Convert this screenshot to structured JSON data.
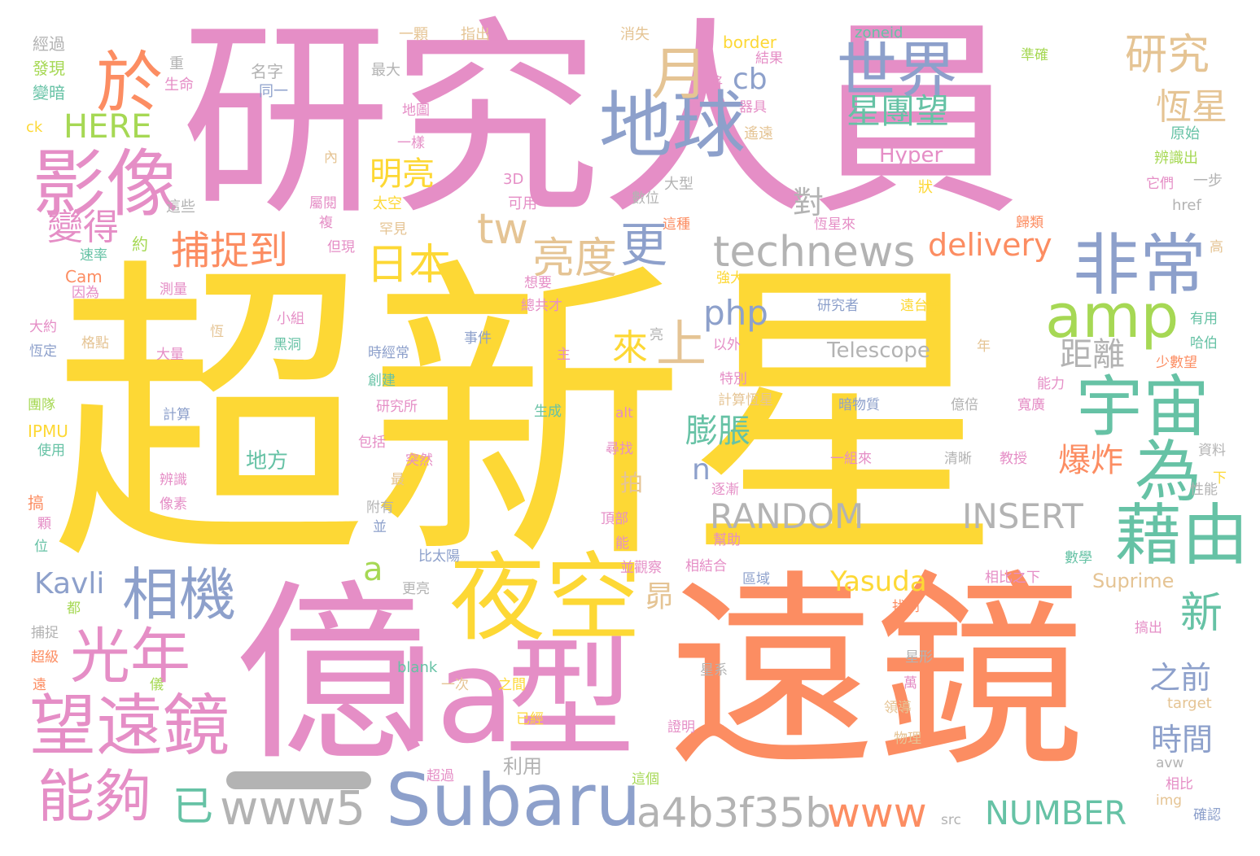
{
  "words": [
    {
      "text": "超新星",
      "color": "yellow"
    },
    {
      "text": "研究人員",
      "color": "pink"
    },
    {
      "text": "遠鏡",
      "color": "orange"
    },
    {
      "text": "億",
      "color": "pink"
    },
    {
      "text": "Ia",
      "color": "pink"
    },
    {
      "text": "型",
      "color": "pink"
    },
    {
      "text": "夜空",
      "color": "yellow"
    },
    {
      "text": "地球",
      "color": "blue"
    },
    {
      "text": "影像",
      "color": "pink"
    },
    {
      "text": "望遠鏡",
      "color": "pink"
    },
    {
      "text": "Subaru",
      "color": "blue"
    },
    {
      "text": "宇宙",
      "color": "green"
    },
    {
      "text": "藉由",
      "color": "green"
    },
    {
      "text": "為",
      "color": "green"
    },
    {
      "text": "非常",
      "color": "blue"
    },
    {
      "text": "amp",
      "color": "lime"
    },
    {
      "text": "世界",
      "color": "blue"
    },
    {
      "text": "月",
      "color": "tan"
    },
    {
      "text": "於",
      "color": "orange"
    },
    {
      "text": "光年",
      "color": "pink"
    },
    {
      "text": "相機",
      "color": "blue"
    },
    {
      "text": "能夠",
      "color": "pink"
    },
    {
      "text": "www5",
      "color": "gray"
    },
    {
      "text": "a4b3f35b",
      "color": "gray"
    },
    {
      "text": "www",
      "color": "orange"
    },
    {
      "text": "NUMBER",
      "color": "green"
    },
    {
      "text": "technews",
      "color": "gray"
    },
    {
      "text": "RANDOM",
      "color": "gray"
    },
    {
      "text": "INSERT",
      "color": "gray"
    },
    {
      "text": "delivery",
      "color": "orange"
    },
    {
      "text": "研究",
      "color": "tan"
    },
    {
      "text": "恆星",
      "color": "tan"
    },
    {
      "text": "星團望",
      "color": "green"
    },
    {
      "text": "捕捉到",
      "color": "orange"
    },
    {
      "text": "日本",
      "color": "yellow"
    },
    {
      "text": "亮度",
      "color": "tan"
    },
    {
      "text": "更",
      "color": "blue"
    },
    {
      "text": "上",
      "color": "tan"
    },
    {
      "text": "來",
      "color": "yellow"
    },
    {
      "text": "php",
      "color": "blue"
    },
    {
      "text": "cb",
      "color": "blue"
    },
    {
      "text": "tw",
      "color": "tan"
    },
    {
      "text": "明亮",
      "color": "yellow"
    },
    {
      "text": "變得",
      "color": "pink"
    },
    {
      "text": "HERE",
      "color": "lime"
    },
    {
      "text": "距離",
      "color": "gray"
    },
    {
      "text": "膨脹",
      "color": "green"
    },
    {
      "text": "爆炸",
      "color": "orange"
    },
    {
      "text": "新",
      "color": "green"
    },
    {
      "text": "之前",
      "color": "blue"
    },
    {
      "text": "時間",
      "color": "blue"
    },
    {
      "text": "Kavli",
      "color": "blue"
    },
    {
      "text": "Yasuda",
      "color": "yellow"
    },
    {
      "text": "已",
      "color": "green"
    },
    {
      "text": "a",
      "color": "lime"
    },
    {
      "text": "n",
      "color": "blue"
    },
    {
      "text": "昴",
      "color": "tan"
    },
    {
      "text": "拍",
      "color": "tan"
    },
    {
      "text": "對",
      "color": "gray"
    },
    {
      "text": "地方",
      "color": "green"
    },
    {
      "text": "Telescope",
      "color": "gray"
    },
    {
      "text": "Hyper",
      "color": "pink"
    },
    {
      "text": "Suprime",
      "color": "tan"
    },
    {
      "text": "利用",
      "color": "gray"
    },
    {
      "text": "經過",
      "color": "gray"
    },
    {
      "text": "發現",
      "color": "lime"
    },
    {
      "text": "變暗",
      "color": "green"
    },
    {
      "text": "ck",
      "color": "yellow"
    },
    {
      "text": "IPMU",
      "color": "yellow"
    },
    {
      "text": "Cam",
      "color": "orange"
    },
    {
      "text": "一顆",
      "color": "tan"
    },
    {
      "text": "指出",
      "color": "tan"
    },
    {
      "text": "消失",
      "color": "tan"
    },
    {
      "text": "border",
      "color": "yellow"
    },
    {
      "text": "zoneid",
      "color": "green"
    },
    {
      "text": "準確",
      "color": "lime"
    },
    {
      "text": "名字",
      "color": "gray"
    },
    {
      "text": "最大",
      "color": "gray"
    },
    {
      "text": "生命",
      "color": "pink"
    },
    {
      "text": "同一",
      "color": "blue"
    },
    {
      "text": "將",
      "color": "pink"
    },
    {
      "text": "結果",
      "color": "pink"
    },
    {
      "text": "器具",
      "color": "pink"
    },
    {
      "text": "遙遠",
      "color": "tan"
    },
    {
      "text": "原始",
      "color": "green"
    },
    {
      "text": "辨識出",
      "color": "lime"
    },
    {
      "text": "一步",
      "color": "gray"
    },
    {
      "text": "它們",
      "color": "pink"
    },
    {
      "text": "href",
      "color": "gray"
    },
    {
      "text": "3D",
      "color": "pink"
    },
    {
      "text": "大型",
      "color": "gray"
    },
    {
      "text": "數位",
      "color": "gray"
    },
    {
      "text": "可用",
      "color": "pink"
    },
    {
      "text": "太空",
      "color": "yellow"
    },
    {
      "text": "屬閱",
      "color": "pink"
    },
    {
      "text": "這些",
      "color": "gray"
    },
    {
      "text": "狀",
      "color": "yellow"
    },
    {
      "text": "歸類",
      "color": "orange"
    },
    {
      "text": "罕見",
      "color": "tan"
    },
    {
      "text": "複",
      "color": "pink"
    },
    {
      "text": "約",
      "color": "lime"
    },
    {
      "text": "速率",
      "color": "green"
    },
    {
      "text": "但現",
      "color": "pink"
    },
    {
      "text": "因為",
      "color": "pink"
    },
    {
      "text": "測量",
      "color": "pink"
    },
    {
      "text": "想要",
      "color": "pink"
    },
    {
      "text": "強大",
      "color": "yellow"
    },
    {
      "text": "研究者",
      "color": "blue"
    },
    {
      "text": "遠台望",
      "color": "yellow"
    },
    {
      "text": "有用",
      "color": "green"
    },
    {
      "text": "哈伯",
      "color": "green"
    },
    {
      "text": "小組",
      "color": "pink"
    },
    {
      "text": "事件",
      "color": "blue"
    },
    {
      "text": "黑洞",
      "color": "green"
    },
    {
      "text": "以外",
      "color": "pink"
    },
    {
      "text": "年",
      "color": "tan"
    },
    {
      "text": "少數望",
      "color": "orange"
    },
    {
      "text": "大約",
      "color": "pink"
    },
    {
      "text": "恆定",
      "color": "blue"
    },
    {
      "text": "格點",
      "color": "tan"
    },
    {
      "text": "大量",
      "color": "pink"
    },
    {
      "text": "時經常",
      "color": "blue"
    },
    {
      "text": "主",
      "color": "pink"
    },
    {
      "text": "特別",
      "color": "pink"
    },
    {
      "text": "計算恆星",
      "color": "tan"
    },
    {
      "text": "能力",
      "color": "pink"
    },
    {
      "text": "團隊",
      "color": "lime"
    },
    {
      "text": "創建",
      "color": "green"
    },
    {
      "text": "研究所",
      "color": "pink"
    },
    {
      "text": "生成",
      "color": "green"
    },
    {
      "text": "alt",
      "color": "pink"
    },
    {
      "text": "暗物質",
      "color": "blue"
    },
    {
      "text": "億倍",
      "color": "gray"
    },
    {
      "text": "寬廣",
      "color": "pink"
    },
    {
      "text": "計算",
      "color": "blue"
    },
    {
      "text": "使用",
      "color": "green"
    },
    {
      "text": "包括",
      "color": "pink"
    },
    {
      "text": "突然",
      "color": "pink"
    },
    {
      "text": "尋找",
      "color": "pink"
    },
    {
      "text": "一組來",
      "color": "pink"
    },
    {
      "text": "清晰",
      "color": "gray"
    },
    {
      "text": "教授",
      "color": "pink"
    },
    {
      "text": "資料",
      "color": "gray"
    },
    {
      "text": "辨識",
      "color": "pink"
    },
    {
      "text": "最",
      "color": "tan"
    },
    {
      "text": "逐漸",
      "color": "pink"
    },
    {
      "text": "下",
      "color": "yellow"
    },
    {
      "text": "性能",
      "color": "gray"
    },
    {
      "text": "搞",
      "color": "orange"
    },
    {
      "text": "顆",
      "color": "pink"
    },
    {
      "text": "像素",
      "color": "pink"
    },
    {
      "text": "附有",
      "color": "gray"
    },
    {
      "text": "頂部",
      "color": "pink"
    },
    {
      "text": "並",
      "color": "blue"
    },
    {
      "text": "幫助",
      "color": "pink"
    },
    {
      "text": "能",
      "color": "pink"
    },
    {
      "text": "位",
      "color": "green"
    },
    {
      "text": "比太陽",
      "color": "blue"
    },
    {
      "text": "並觀察",
      "color": "pink"
    },
    {
      "text": "相結合",
      "color": "pink"
    },
    {
      "text": "區域",
      "color": "blue"
    },
    {
      "text": "相比之下",
      "color": "pink"
    },
    {
      "text": "數學",
      "color": "green"
    },
    {
      "text": "都",
      "color": "lime"
    },
    {
      "text": "更亮",
      "color": "gray"
    },
    {
      "text": "找到",
      "color": "orange"
    },
    {
      "text": "捕捉",
      "color": "gray"
    },
    {
      "text": "搞出",
      "color": "pink"
    },
    {
      "text": "超級",
      "color": "orange"
    },
    {
      "text": "blank",
      "color": "green"
    },
    {
      "text": "星形",
      "color": "gray"
    },
    {
      "text": "星系",
      "color": "gray"
    },
    {
      "text": "萬",
      "color": "pink"
    },
    {
      "text": "遠",
      "color": "orange"
    },
    {
      "text": "儀",
      "color": "lime"
    },
    {
      "text": "一次",
      "color": "tan"
    },
    {
      "text": "之間",
      "color": "yellow"
    },
    {
      "text": "target",
      "color": "tan"
    },
    {
      "text": "領導",
      "color": "tan"
    },
    {
      "text": "已經",
      "color": "yellow"
    },
    {
      "text": "證明",
      "color": "pink"
    },
    {
      "text": "物理",
      "color": "tan"
    },
    {
      "text": "avw",
      "color": "gray"
    },
    {
      "text": "超過",
      "color": "pink"
    },
    {
      "text": "這個",
      "color": "lime"
    },
    {
      "text": "img",
      "color": "tan"
    },
    {
      "text": "相比",
      "color": "pink"
    },
    {
      "text": "src",
      "color": "gray"
    },
    {
      "text": "確認",
      "color": "blue"
    },
    {
      "text": "重",
      "color": "gray"
    },
    {
      "text": "一樣",
      "color": "pink"
    },
    {
      "text": "地圖",
      "color": "pink"
    },
    {
      "text": "內",
      "color": "tan"
    },
    {
      "text": "這種",
      "color": "orange"
    },
    {
      "text": "恆星來",
      "color": "pink"
    },
    {
      "text": "總共才",
      "color": "pink"
    },
    {
      "text": "高",
      "color": "tan"
    },
    {
      "text": "亮",
      "color": "gray"
    },
    {
      "text": "恆",
      "color": "tan"
    }
  ]
}
